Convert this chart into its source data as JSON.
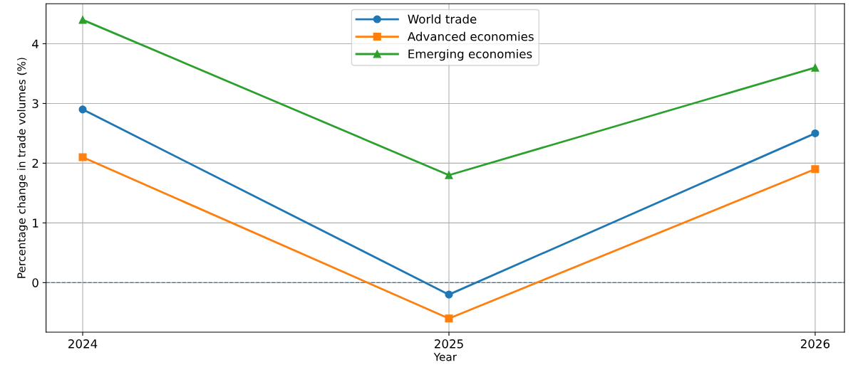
{
  "chart_data": {
    "type": "line",
    "xlabel": "Year",
    "ylabel": "Percentage change in trade volumes (%)",
    "x": [
      2024,
      2025,
      2026
    ],
    "series": [
      {
        "name": "World trade",
        "color": "#1f77b4",
        "marker": "circle",
        "values": [
          2.9,
          -0.2,
          2.5
        ]
      },
      {
        "name": "Advanced economies",
        "color": "#ff7f0e",
        "marker": "square",
        "values": [
          2.1,
          -0.6,
          1.9
        ]
      },
      {
        "name": "Emerging economies",
        "color": "#2ca02c",
        "marker": "triangle",
        "values": [
          4.4,
          1.8,
          3.6
        ]
      }
    ],
    "xlim": [
      2023.9,
      2026.08
    ],
    "xticks": [
      2024,
      2025,
      2026
    ],
    "ylim": [
      -0.83,
      4.67
    ],
    "yticks": [
      0,
      1,
      2,
      3,
      4
    ],
    "ref_lines": [
      {
        "axis": "y",
        "value": 0,
        "label": null,
        "color": "#1f77b4",
        "line_style": "dashed"
      }
    ],
    "grid": true,
    "legend": "top",
    "line_style": "solid"
  }
}
